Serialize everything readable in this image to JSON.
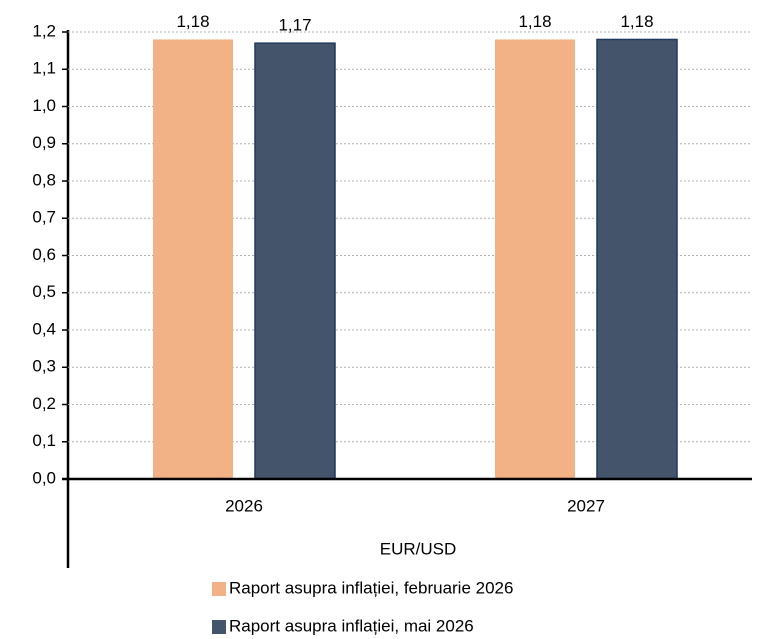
{
  "chart_data": {
    "type": "bar",
    "categories": [
      "2026",
      "2027"
    ],
    "x_label": "EUR/USD",
    "series": [
      {
        "name": "Raport asupra inflației, februarie 2026",
        "color": "#f2b285",
        "values": [
          1.18,
          1.18
        ],
        "value_labels": [
          "1,18",
          "1,18"
        ]
      },
      {
        "name": "Raport asupra inflației, mai 2026",
        "color": "#44546a",
        "values": [
          1.17,
          1.18
        ],
        "value_labels": [
          "1,17",
          "1,18"
        ]
      }
    ],
    "ylim": [
      0,
      1.2
    ],
    "yticks": [
      {
        "value": 0,
        "label": "0,0"
      },
      {
        "value": 0.1,
        "label": "0,1"
      },
      {
        "value": 0.2,
        "label": "0,2"
      },
      {
        "value": 0.3,
        "label": "0,3"
      },
      {
        "value": 0.4,
        "label": "0,4"
      },
      {
        "value": 0.5,
        "label": "0,5"
      },
      {
        "value": 0.6,
        "label": "0,6"
      },
      {
        "value": 0.7,
        "label": "0,7"
      },
      {
        "value": 0.8,
        "label": "0,8"
      },
      {
        "value": 0.9,
        "label": "0,9"
      },
      {
        "value": 1,
        "label": "1,0"
      },
      {
        "value": 1.1,
        "label": "1,1"
      },
      {
        "value": 1.2,
        "label": "1,2"
      }
    ],
    "grid": true
  }
}
